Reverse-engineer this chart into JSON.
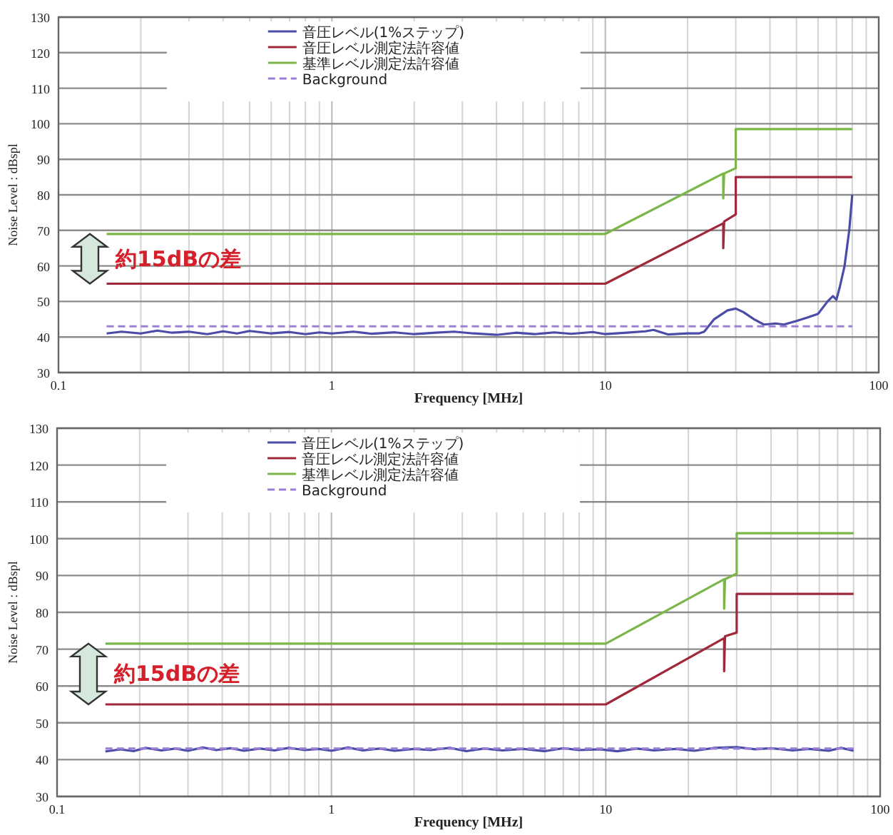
{
  "chart_data": [
    {
      "type": "line",
      "xlabel": "Frequency [MHz]",
      "ylabel": "Noise Level : dBspl",
      "log": "x",
      "xlim": [
        0.1,
        100
      ],
      "xticks": [
        0.1,
        1,
        10,
        100
      ],
      "ylim": [
        30,
        130
      ],
      "yticks": [
        30,
        40,
        50,
        60,
        70,
        80,
        90,
        100,
        110,
        120,
        130
      ],
      "grid": true,
      "legend": "top",
      "annotations": [
        "約15dBの差"
      ],
      "series": [
        {
          "name": "音圧レベル(1%ステップ)",
          "color": "#4b4ba8",
          "line_style": "solid",
          "x": [
            0.15,
            0.17,
            0.2,
            0.23,
            0.26,
            0.3,
            0.35,
            0.4,
            0.45,
            0.5,
            0.6,
            0.7,
            0.8,
            0.9,
            1,
            1.2,
            1.4,
            1.7,
            2,
            2.4,
            2.8,
            3.3,
            4,
            4.7,
            5.5,
            6.5,
            7.5,
            9,
            10,
            12,
            14,
            15,
            17,
            20,
            22,
            23,
            25,
            28,
            30,
            32,
            35,
            38,
            42,
            45,
            50,
            55,
            60,
            65,
            68,
            70,
            72,
            75,
            78,
            80
          ],
          "values": [
            41,
            41.5,
            41,
            41.8,
            41.2,
            41.5,
            40.8,
            41.6,
            41,
            41.7,
            41,
            41.4,
            40.8,
            41.3,
            41,
            41.5,
            40.9,
            41.3,
            40.8,
            41.2,
            41.5,
            41,
            40.6,
            41.2,
            40.8,
            41.3,
            40.9,
            41.4,
            40.8,
            41.2,
            41.6,
            42,
            40.7,
            41,
            41,
            41.5,
            45,
            47.5,
            48,
            47,
            45,
            43.5,
            43.8,
            43.5,
            44.5,
            45.5,
            46.5,
            50,
            51.5,
            50.5,
            54,
            60,
            70,
            80
          ]
        },
        {
          "name": "音圧レベル測定法許容値",
          "color": "#a0283c",
          "line_style": "solid",
          "x": [
            0.15,
            10,
            27,
            27,
            27.2,
            30,
            30,
            80
          ],
          "values": [
            55,
            55,
            72,
            65,
            72.5,
            74.5,
            85,
            85
          ]
        },
        {
          "name": "基準レベル測定法許容値",
          "color": "#7ab648",
          "line_style": "solid",
          "x": [
            0.15,
            10,
            27,
            27,
            27.2,
            30,
            30,
            80
          ],
          "values": [
            69,
            69,
            86,
            79,
            86,
            87.5,
            98.5,
            98.5
          ]
        },
        {
          "name": "Background",
          "color": "#9a7fd6",
          "line_style": "dashed",
          "x": [
            0.15,
            80
          ],
          "values": [
            43,
            43
          ]
        }
      ]
    },
    {
      "type": "line",
      "xlabel": "Frequency [MHz]",
      "ylabel": "Noise Level : dBspl",
      "log": "x",
      "xlim": [
        0.1,
        100
      ],
      "xticks": [
        0.1,
        1,
        10,
        100
      ],
      "ylim": [
        30,
        130
      ],
      "yticks": [
        30,
        40,
        50,
        60,
        70,
        80,
        90,
        100,
        110,
        120,
        130
      ],
      "grid": true,
      "legend": "top",
      "annotations": [
        "約15dBの差"
      ],
      "series": [
        {
          "name": "音圧レベル(1%ステップ)",
          "color": "#4b4ba8",
          "line_style": "solid",
          "x": [
            0.15,
            0.17,
            0.19,
            0.21,
            0.24,
            0.27,
            0.3,
            0.34,
            0.38,
            0.43,
            0.48,
            0.55,
            0.62,
            0.7,
            0.8,
            0.9,
            1,
            1.15,
            1.3,
            1.5,
            1.7,
            2,
            2.3,
            2.7,
            3.1,
            3.6,
            4.2,
            5,
            6,
            7,
            8,
            9.5,
            11,
            13,
            15,
            18,
            21,
            25,
            30,
            35,
            40,
            48,
            55,
            65,
            72,
            80
          ],
          "values": [
            42.2,
            42.8,
            42.3,
            43.2,
            42.5,
            43,
            42.4,
            43.3,
            42.6,
            43.1,
            42.4,
            43,
            42.5,
            43.2,
            42.6,
            42.9,
            42.4,
            43.3,
            42.5,
            43,
            42.4,
            42.9,
            42.6,
            43.2,
            42.3,
            43,
            42.5,
            42.9,
            42.3,
            43.1,
            42.6,
            42.8,
            42.3,
            43,
            42.5,
            42.9,
            42.4,
            43.2,
            43.4,
            42.8,
            43.1,
            42.5,
            42.9,
            42.4,
            43.2,
            42.4
          ]
        },
        {
          "name": "音圧レベル測定法許容値",
          "color": "#a0283c",
          "line_style": "solid",
          "x": [
            0.15,
            10,
            27,
            27,
            27.2,
            30,
            30,
            80
          ],
          "values": [
            55,
            55,
            73,
            64,
            73.5,
            74.5,
            85,
            85
          ]
        },
        {
          "name": "基準レベル測定法許容値",
          "color": "#7ab648",
          "line_style": "solid",
          "x": [
            0.15,
            10,
            27,
            27,
            27.2,
            30,
            30,
            80
          ],
          "values": [
            71.5,
            71.5,
            89,
            81,
            89,
            90.5,
            101.5,
            101.5
          ]
        },
        {
          "name": "Background",
          "color": "#9a7fd6",
          "line_style": "dashed",
          "x": [
            0.15,
            80
          ],
          "values": [
            43,
            43
          ]
        }
      ]
    }
  ]
}
